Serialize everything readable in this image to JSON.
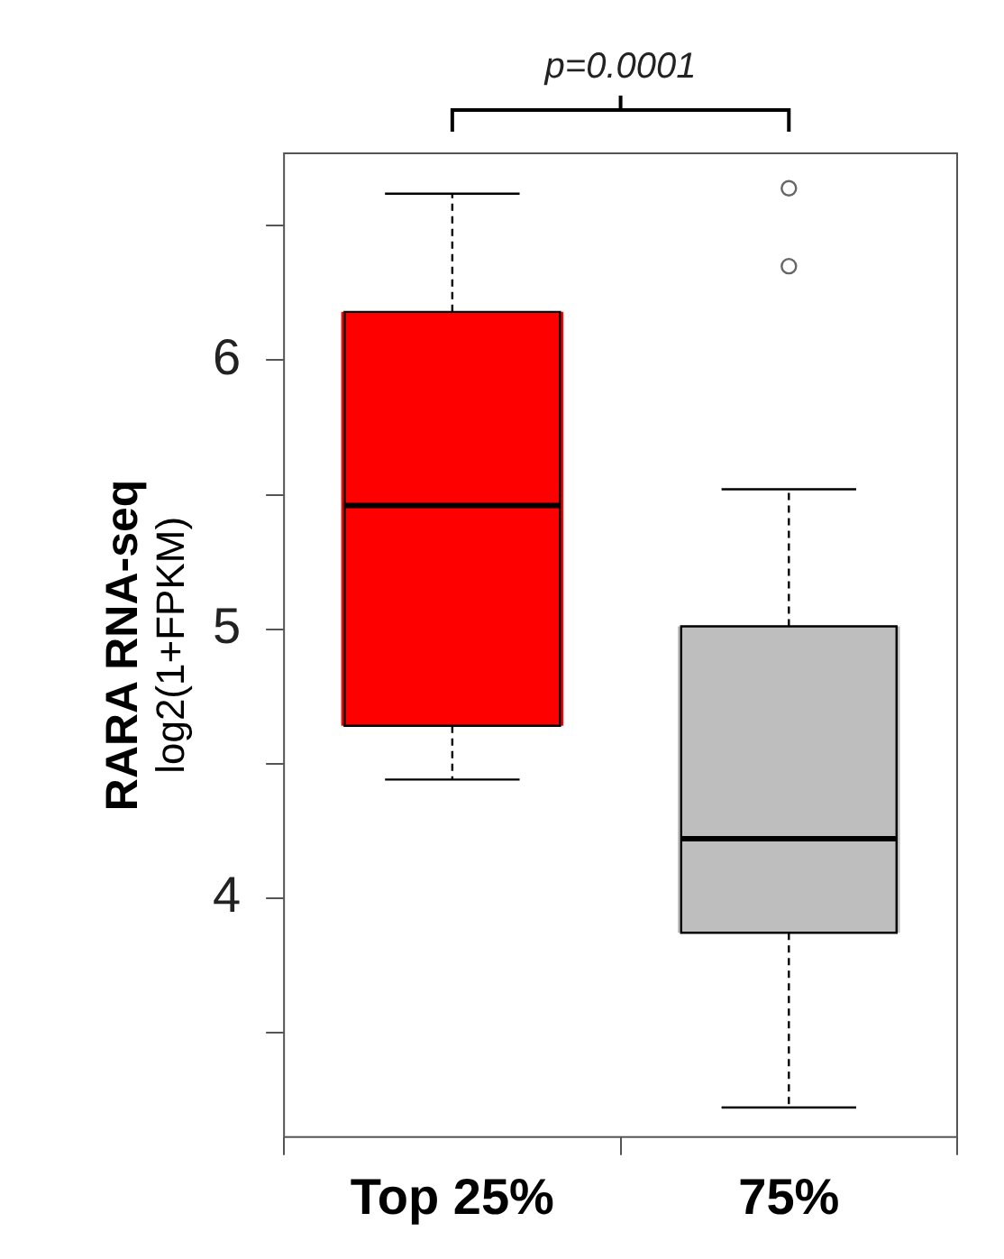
{
  "chart_data": {
    "type": "box",
    "categories": [
      "Top 25%",
      "75%"
    ],
    "ylabel": "RARA RNA-seq\nlog2(1+FPKM)",
    "colors": [
      "#ff0000",
      "#bebebe"
    ],
    "boxes": [
      {
        "low": 4.44,
        "q1": 4.64,
        "median": 5.46,
        "q3": 6.18,
        "high": 6.62
      },
      {
        "low": 3.22,
        "q1": 3.87,
        "median": 4.22,
        "q3": 5.01,
        "high": 5.52,
        "outliers": [
          6.35,
          6.64
        ]
      }
    ],
    "ylim": [
      3.11,
      6.77
    ],
    "yticks": [
      {
        "value": 3.5,
        "label": null
      },
      4,
      {
        "value": 4.5,
        "label": null
      },
      5,
      {
        "value": 5.5,
        "label": null
      },
      6,
      {
        "value": 6.5,
        "label": null
      }
    ],
    "grid": false,
    "annotations": [
      "p=0.0001"
    ]
  }
}
